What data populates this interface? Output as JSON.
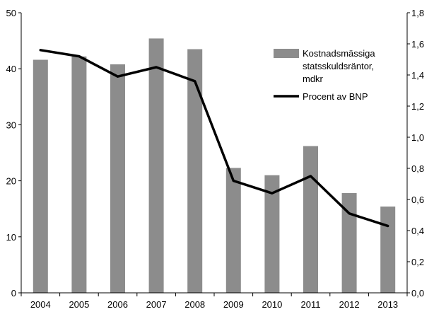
{
  "chart_data": {
    "type": "bar+line",
    "categories": [
      "2004",
      "2005",
      "2006",
      "2007",
      "2008",
      "2009",
      "2010",
      "2011",
      "2012",
      "2013"
    ],
    "series": [
      {
        "name": "Kostnadsmässiga statsskuldsräntor, mdkr",
        "type": "bar",
        "axis": "left",
        "color": "#8c8c8c",
        "values": [
          41.6,
          42.2,
          40.8,
          45.4,
          43.5,
          22.3,
          21.0,
          26.2,
          17.8,
          15.4
        ]
      },
      {
        "name": "Procent av BNP",
        "type": "line",
        "axis": "right",
        "color": "#000000",
        "values": [
          1.56,
          1.52,
          1.39,
          1.45,
          1.36,
          0.72,
          0.64,
          0.75,
          0.51,
          0.43
        ]
      }
    ],
    "legend": {
      "position": "top-right",
      "bar_lines": [
        "Kostnadsmässiga",
        "statsskuldsräntor,",
        "mdkr"
      ],
      "line_label": "Procent av BNP"
    },
    "y_left": {
      "min": 0,
      "max": 50,
      "ticks": [
        0,
        10,
        20,
        30,
        40,
        50
      ],
      "tick_labels": [
        "0",
        "10",
        "20",
        "30",
        "40",
        "50"
      ]
    },
    "y_right": {
      "min": 0,
      "max": 1.8,
      "ticks": [
        0,
        0.2,
        0.4,
        0.6,
        0.8,
        1.0,
        1.2,
        1.4,
        1.6,
        1.8
      ],
      "tick_labels": [
        "0,0",
        "0,2",
        "0,4",
        "0,6",
        "0,8",
        "1,0",
        "1,2",
        "1,4",
        "1,6",
        "1,8"
      ]
    },
    "grid": false,
    "title": "",
    "xlabel": "",
    "ylabel": ""
  }
}
